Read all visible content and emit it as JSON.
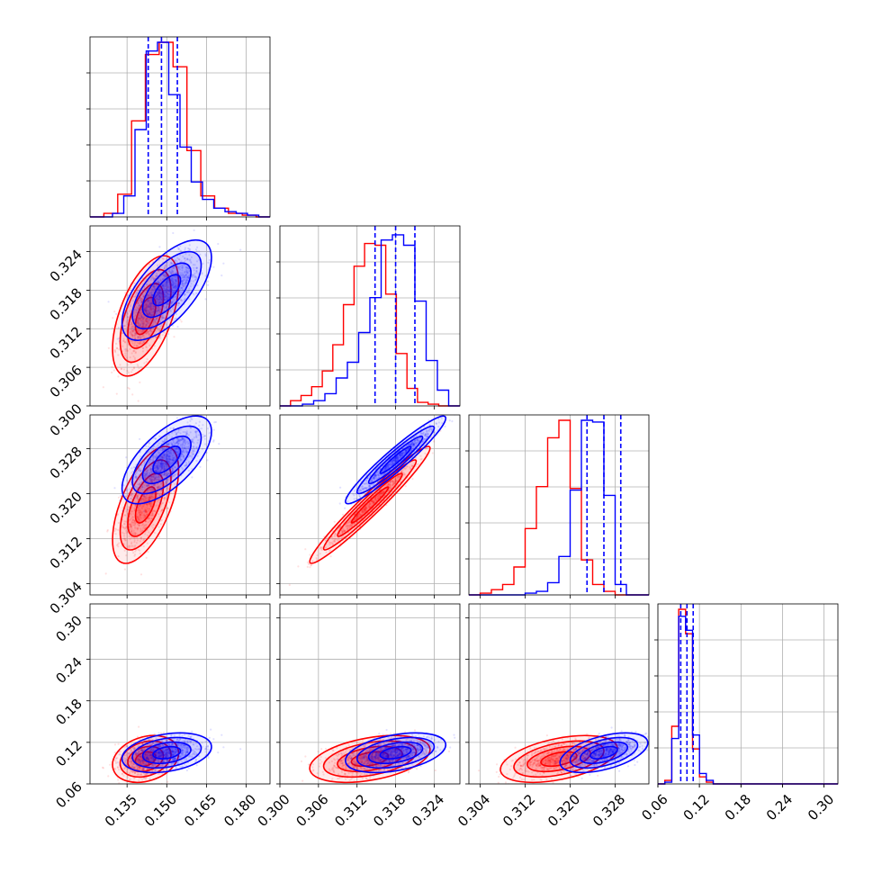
{
  "chart_data": {
    "type": "corner",
    "title": "",
    "grid": true,
    "params": [
      {
        "range": [
          0.121,
          0.189
        ],
        "ticks": [
          0.135,
          0.15,
          0.165,
          0.18
        ],
        "tick_labels": [
          "0.135",
          "0.150",
          "0.165",
          "0.180"
        ]
      },
      {
        "range": [
          0.3,
          0.328
        ],
        "ticks": [
          0.3,
          0.306,
          0.312,
          0.318,
          0.324
        ],
        "tick_labels": [
          "0.300",
          "0.306",
          "0.312",
          "0.318",
          "0.324"
        ]
      },
      {
        "range": [
          0.302,
          0.334
        ],
        "ticks": [
          0.304,
          0.312,
          0.32,
          0.328
        ],
        "tick_labels": [
          "0.304",
          "0.312",
          "0.320",
          "0.328"
        ]
      },
      {
        "range": [
          0.06,
          0.32
        ],
        "ticks": [
          0.06,
          0.12,
          0.18,
          0.24,
          0.3
        ],
        "tick_labels": [
          "0.06",
          "0.12",
          "0.18",
          "0.24",
          "0.30"
        ]
      }
    ],
    "series": [
      {
        "color": "#ff0000",
        "means": [
          0.142,
          0.314,
          0.318,
          0.096
        ],
        "sds": [
          0.0048,
          0.0036,
          0.004,
          0.013
        ],
        "corr": [
          [
            1,
            0.55,
            0.6,
            0.25
          ],
          [
            0.55,
            1,
            0.97,
            0.4
          ],
          [
            0.6,
            0.97,
            1,
            0.45
          ],
          [
            0.25,
            0.4,
            0.45,
            1
          ]
        ],
        "hist": [
          [
            0.0,
            0.02,
            0.13,
            0.55,
            0.93,
            1.0,
            0.86,
            0.38,
            0.12,
            0.05,
            0.02,
            0.01,
            0.0
          ],
          [
            0.0,
            0.03,
            0.06,
            0.11,
            0.2,
            0.35,
            0.58,
            0.8,
            0.93,
            0.92,
            0.64,
            0.3,
            0.1,
            0.02,
            0.01,
            0.0,
            0.0
          ],
          [
            0.0,
            0.01,
            0.03,
            0.06,
            0.16,
            0.38,
            0.62,
            0.9,
            1.0,
            0.61,
            0.2,
            0.06,
            0.02,
            0.0,
            0.0,
            0.0
          ],
          [
            0.0,
            0.02,
            0.33,
            1.0,
            0.86,
            0.2,
            0.04,
            0.01,
            0.0,
            0.0,
            0.0,
            0.0,
            0.0,
            0.0,
            0.0,
            0.0,
            0.0,
            0.0,
            0.0,
            0.0,
            0.0,
            0.0,
            0.0,
            0.0,
            0.0,
            0.0
          ]
        ]
      },
      {
        "color": "#0000ff",
        "means": [
          0.15,
          0.318,
          0.326,
          0.105
        ],
        "sds": [
          0.0065,
          0.003,
          0.003,
          0.011
        ],
        "corr": [
          [
            1,
            0.65,
            0.65,
            0.3
          ],
          [
            0.65,
            1,
            0.95,
            0.4
          ],
          [
            0.65,
            0.95,
            1,
            0.5
          ],
          [
            0.3,
            0.4,
            0.5,
            1
          ]
        ],
        "quantiles": [
          [
            0.143,
            0.148,
            0.154
          ],
          [
            0.3148,
            0.318,
            0.321
          ],
          [
            0.323,
            0.326,
            0.329
          ],
          [
            0.093,
            0.102,
            0.111
          ]
        ],
        "hist": [
          [
            0.0,
            0.0,
            0.02,
            0.12,
            0.5,
            0.95,
            1.0,
            0.7,
            0.4,
            0.2,
            0.1,
            0.05,
            0.03,
            0.02,
            0.01,
            0.0
          ],
          [
            0.0,
            0.0,
            0.01,
            0.03,
            0.07,
            0.16,
            0.25,
            0.42,
            0.62,
            0.95,
            0.98,
            0.92,
            0.6,
            0.26,
            0.09,
            0.0
          ],
          [
            0.0,
            0.0,
            0.0,
            0.0,
            0.0,
            0.01,
            0.02,
            0.07,
            0.22,
            0.6,
            1.0,
            0.99,
            0.57,
            0.06,
            0.0,
            0.0
          ],
          [
            0.0,
            0.01,
            0.26,
            0.96,
            0.88,
            0.28,
            0.06,
            0.02,
            0.0,
            0.0,
            0.0,
            0.0,
            0.0,
            0.0,
            0.0,
            0.0,
            0.0,
            0.0,
            0.0,
            0.0,
            0.0,
            0.0,
            0.0,
            0.0,
            0.0,
            0.0
          ]
        ]
      }
    ]
  }
}
